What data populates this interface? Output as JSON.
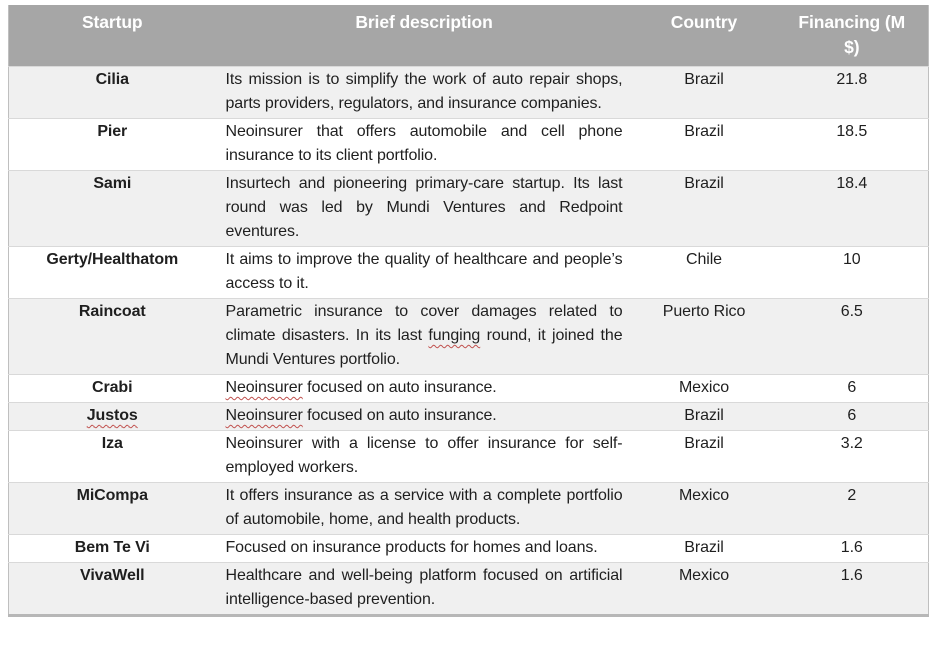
{
  "colors": {
    "header_bg": "#a6a6a6",
    "header_text": "#ffffff",
    "row_shaded_bg": "#f0f0f0",
    "row_plain_bg": "#ffffff",
    "body_text": "#1f1f1f",
    "squiggle": "#c0504d",
    "row_divider": "#d9d9d9",
    "outer_border": "#bfbfbf",
    "bottom_border": "#b7b7b7"
  },
  "table": {
    "columns": [
      {
        "id": "startup",
        "label": "Startup"
      },
      {
        "id": "description",
        "label": "Brief description"
      },
      {
        "id": "country",
        "label": "Country"
      },
      {
        "id": "financing",
        "label": "Financing (M $)"
      }
    ],
    "rows": [
      {
        "startup": "Cilia",
        "description": "Its mission is to simplify the work of auto repair shops, parts providers, regulators, and insurance companies.",
        "country": "Brazil",
        "financing": "21.8",
        "shaded": true,
        "misspelled_words": [],
        "startup_misspelled": false
      },
      {
        "startup": "Pier",
        "description": "Neoinsurer that offers automobile and cell phone insurance to its client portfolio.",
        "country": "Brazil",
        "financing": "18.5",
        "shaded": false,
        "misspelled_words": [],
        "startup_misspelled": false
      },
      {
        "startup": "Sami",
        "description": "Insurtech and pioneering primary-care startup. Its last round was led by Mundi Ventures and Redpoint eventures.",
        "country": "Brazil",
        "financing": "18.4",
        "shaded": true,
        "misspelled_words": [],
        "startup_misspelled": false
      },
      {
        "startup": "Gerty/Healthatom",
        "description": "It aims to improve the quality of healthcare and people’s access to it.",
        "country": "Chile",
        "financing": "10",
        "shaded": false,
        "misspelled_words": [],
        "startup_misspelled": false
      },
      {
        "startup": "Raincoat",
        "description": "Parametric insurance to cover damages related to climate disasters. In its last funging round, it joined the Mundi Ventures portfolio.",
        "country": "Puerto Rico",
        "financing": "6.5",
        "shaded": true,
        "misspelled_words": [
          "funging"
        ],
        "startup_misspelled": false
      },
      {
        "startup": "Crabi",
        "description": "Neoinsurer focused on auto insurance.",
        "country": "Mexico",
        "financing": "6",
        "shaded": false,
        "misspelled_words": [
          "Neoinsurer"
        ],
        "startup_misspelled": false
      },
      {
        "startup": "Justos",
        "description": "Neoinsurer focused on auto insurance.",
        "country": "Brazil",
        "financing": "6",
        "shaded": true,
        "misspelled_words": [
          "Neoinsurer"
        ],
        "startup_misspelled": true
      },
      {
        "startup": "Iza",
        "description": "Neoinsurer with a license to offer insurance for self-employed workers.",
        "country": "Brazil",
        "financing": "3.2",
        "shaded": false,
        "misspelled_words": [],
        "startup_misspelled": false
      },
      {
        "startup": "MiCompa",
        "description": "It offers insurance as a service with a complete portfolio of automobile, home, and health products.",
        "country": "Mexico",
        "financing": "2",
        "shaded": true,
        "misspelled_words": [],
        "startup_misspelled": false
      },
      {
        "startup": "Bem Te Vi",
        "description": "Focused on insurance products for homes and loans.",
        "country": "Brazil",
        "financing": "1.6",
        "shaded": false,
        "misspelled_words": [],
        "startup_misspelled": false
      },
      {
        "startup": "VivaWell",
        "description": "Healthcare and well-being platform focused on artificial intelligence-based prevention.",
        "country": "Mexico",
        "financing": "1.6",
        "shaded": true,
        "misspelled_words": [],
        "startup_misspelled": false
      }
    ]
  }
}
